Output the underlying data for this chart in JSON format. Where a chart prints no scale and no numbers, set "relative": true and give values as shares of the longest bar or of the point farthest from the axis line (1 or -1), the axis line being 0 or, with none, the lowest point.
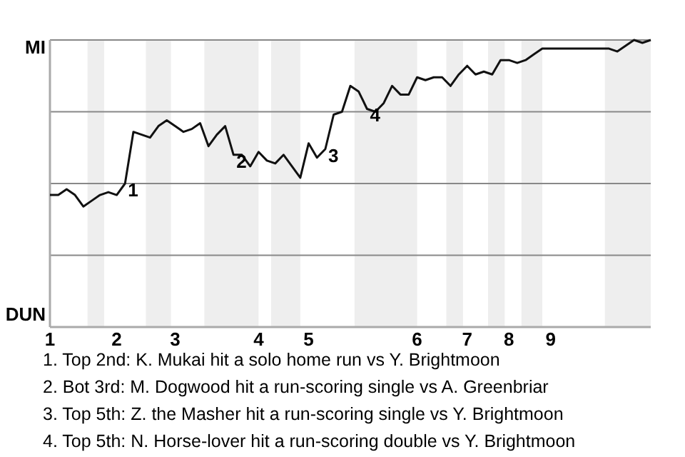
{
  "chart_data": {
    "type": "line",
    "relative": true,
    "grid": "y",
    "marker": "none",
    "line_style": "solid",
    "categories": [
      "1",
      null,
      null,
      null,
      null,
      null,
      null,
      null,
      "2",
      null,
      null,
      null,
      null,
      null,
      null,
      "3",
      null,
      null,
      null,
      null,
      null,
      null,
      null,
      null,
      null,
      "4",
      null,
      null,
      null,
      null,
      null,
      "5",
      null,
      null,
      null,
      null,
      null,
      null,
      null,
      null,
      null,
      null,
      null,
      null,
      "6",
      null,
      null,
      null,
      null,
      null,
      "7",
      null,
      null,
      null,
      null,
      "8",
      null,
      null,
      null,
      null,
      "9",
      null,
      null,
      null,
      null,
      null,
      null,
      null,
      null,
      null,
      null,
      null,
      null
    ],
    "series": [
      {
        "color": "#111111",
        "values": [
          0.46,
          0.46,
          0.48,
          0.46,
          0.42,
          0.44,
          0.46,
          0.47,
          0.46,
          0.5,
          0.68,
          0.67,
          0.66,
          0.7,
          0.72,
          0.7,
          0.68,
          0.69,
          0.71,
          0.63,
          0.67,
          0.7,
          0.6,
          0.6,
          0.56,
          0.61,
          0.58,
          0.57,
          0.6,
          0.56,
          0.52,
          0.64,
          0.59,
          0.62,
          0.74,
          0.75,
          0.84,
          0.82,
          0.76,
          0.75,
          0.78,
          0.84,
          0.81,
          0.81,
          0.87,
          0.86,
          0.87,
          0.87,
          0.84,
          0.88,
          0.91,
          0.88,
          0.89,
          0.88,
          0.93,
          0.93,
          0.92,
          0.93,
          0.95,
          0.97,
          0.97,
          0.97,
          0.97,
          0.97,
          0.97,
          0.97,
          0.97,
          0.97,
          0.96,
          0.98,
          1.0,
          0.99,
          1.0
        ]
      }
    ],
    "annotations": [
      "MI",
      "DUN",
      {
        "text": "1",
        "y": 0.5
      },
      {
        "text": "2",
        "y": 0.6
      },
      {
        "text": "3",
        "y": 0.62
      },
      {
        "text": "4",
        "y": 0.76
      },
      "1. Top 2nd: K. Mukai hit a solo home run vs Y. Brightmoon",
      "2. Bot 3rd: M. Dogwood hit a run-scoring single vs A. Greenbriar",
      "3. Top 5th: Z. the Masher hit a run-scoring single vs Y. Brightmoon",
      "4. Top 5th: N. Horse-lover hit a run-scoring double vs Y. Brightmoon"
    ]
  }
}
